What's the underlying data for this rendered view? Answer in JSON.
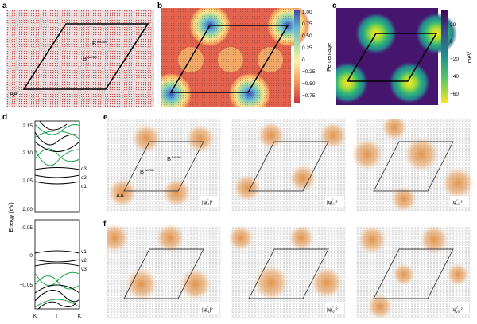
{
  "panels": {
    "a": {
      "letter": "a",
      "labels": {
        "aa": "AA",
        "baa": "B",
        "baa_sup": "AA/BB",
        "bbb": "B",
        "bbb_sup": "BA/AB"
      }
    },
    "b": {
      "letter": "b",
      "colorbar": {
        "title": "Percentage",
        "ticks": [
          "1.00",
          "0.75",
          "0.50",
          "0.25",
          "0",
          "−0.25",
          "−0.50",
          "−0.75"
        ]
      }
    },
    "c": {
      "letter": "c",
      "colorbar": {
        "title": "meV",
        "ticks": [
          "20",
          "0",
          "−20",
          "−40",
          "−60"
        ]
      }
    },
    "d": {
      "letter": "d",
      "ylabel": "Energy (eV)",
      "top_ticks": [
        "2.15",
        "2.10",
        "2.05",
        "2.00"
      ],
      "bottom_ticks": [
        "0.05",
        "0",
        "−0.05"
      ],
      "xticks": [
        "K",
        "Γ",
        "K"
      ],
      "band_labels": {
        "c3": "c3",
        "c2": "c2",
        "c1": "c1",
        "v1": "v1",
        "v2": "v2",
        "v3": "v3"
      }
    },
    "e": {
      "letter": "e",
      "labels": {
        "aa": "AA",
        "baa": "B",
        "baa_sup": "AA/BB",
        "bbb": "B",
        "bbb_sup": "BA/AB"
      },
      "tags": [
        {
          "main": "|ψ",
          "sub": "c1",
          "sup": "Γ",
          "end": "|²"
        },
        {
          "main": "|ψ",
          "sub": "c2",
          "sup": "Γ",
          "end": "|²"
        },
        {
          "main": "|ψ",
          "sub": "c3",
          "sup": "Γ",
          "end": "|²"
        }
      ]
    },
    "f": {
      "letter": "f",
      "tags": [
        {
          "main": "|ψ",
          "sub": "v1",
          "sup": "Γ",
          "end": "|²"
        },
        {
          "main": "|ψ",
          "sub": "v2",
          "sup": "Γ",
          "end": "|²"
        },
        {
          "main": "|ψ",
          "sub": "v3",
          "sup": "Γ",
          "end": "|²"
        }
      ]
    }
  }
}
